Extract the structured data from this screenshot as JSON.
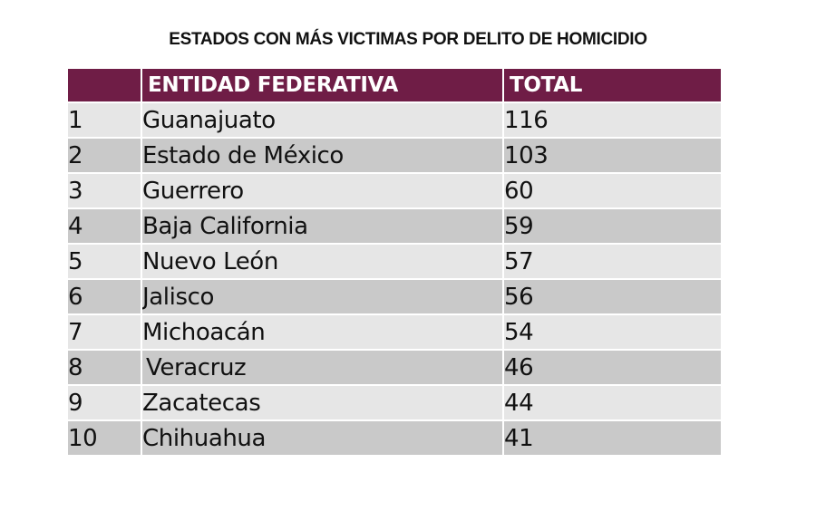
{
  "title": "ESTADOS CON MÁS VICTIMAS POR DELITO DE HOMICIDIO",
  "colors": {
    "header_bg": "#6f1d46",
    "header_text": "#ffffff",
    "row_light": "#e6e6e6",
    "row_dark": "#c9c9c9",
    "border": "#ffffff"
  },
  "table": {
    "headers": [
      "",
      "ENTIDAD FEDERATIVA",
      "TOTAL"
    ],
    "rows": [
      {
        "rank": "1",
        "entidad": "Guanajuato",
        "total": "116"
      },
      {
        "rank": "2",
        "entidad": "Estado de México",
        "total": "103"
      },
      {
        "rank": "3",
        "entidad": "Guerrero",
        "total": "60"
      },
      {
        "rank": "4",
        "entidad": "Baja California",
        "total": "59"
      },
      {
        "rank": "5",
        "entidad": "Nuevo León",
        "total": "57"
      },
      {
        "rank": "6",
        "entidad": "Jalisco",
        "total": "56"
      },
      {
        "rank": "7",
        "entidad": "Michoacán",
        "total": "54"
      },
      {
        "rank": "8",
        "entidad": "Veracruz",
        "total": "46"
      },
      {
        "rank": "9",
        "entidad": "Zacatecas",
        "total": "44"
      },
      {
        "rank": "10",
        "entidad": "Chihuahua",
        "total": "41"
      }
    ]
  }
}
